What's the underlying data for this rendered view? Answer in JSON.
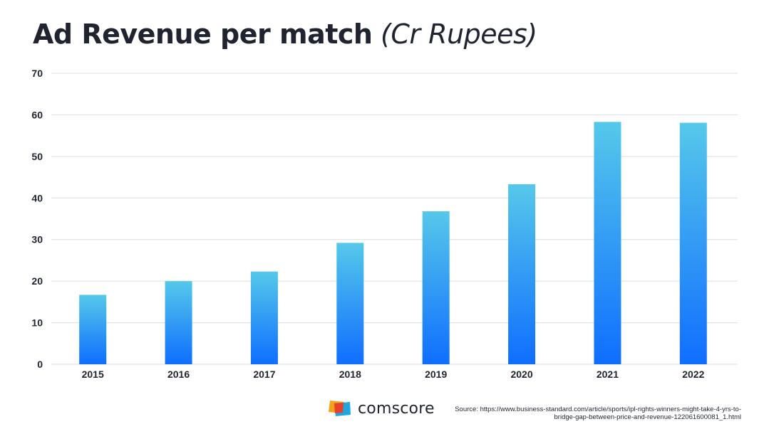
{
  "title": {
    "main": "Ad Revenue per match",
    "unit": "(Cr Rupees)"
  },
  "chart_data": {
    "type": "bar",
    "title": "Ad Revenue per match (Cr Rupees)",
    "xlabel": "",
    "ylabel": "",
    "categories": [
      "2015",
      "2016",
      "2017",
      "2018",
      "2019",
      "2020",
      "2021",
      "2022"
    ],
    "values": [
      16.7,
      20.0,
      22.3,
      29.2,
      36.8,
      43.3,
      58.3,
      58.1
    ],
    "ylim": [
      0,
      70
    ],
    "yticks": [
      0,
      10,
      20,
      30,
      40,
      50,
      60,
      70
    ],
    "grid": true,
    "legend": "none",
    "colors": {
      "bar_top": "#56c8ea",
      "bar_bottom": "#0f6eff",
      "grid": "#d9dde3",
      "axis_text": "#1f2430"
    }
  },
  "footer": {
    "logo_text": "comscore",
    "logo_icon": "comscore-logo-icon",
    "source": "Source: https://www.business-standard.com/article/sports/ipl-rights-winners-might-take-4-yrs-to-bridge-gap-between-price-and-revenue-122061600081_1.html"
  }
}
